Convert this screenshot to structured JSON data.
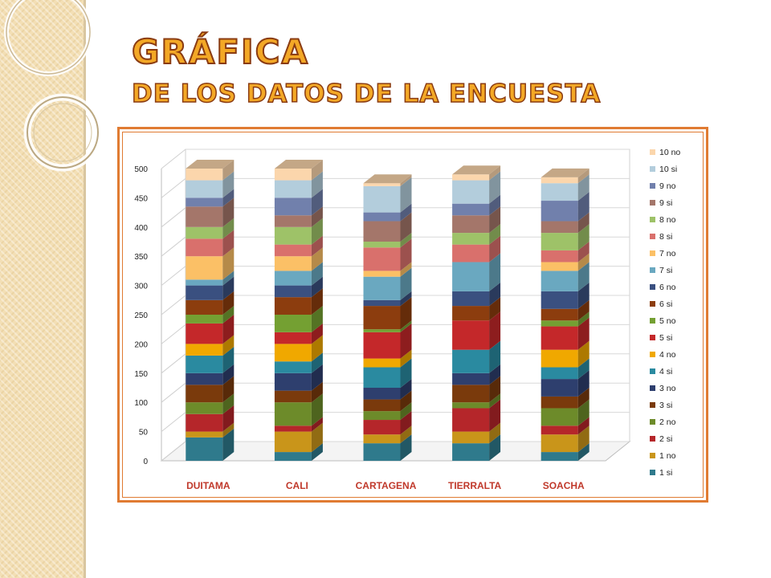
{
  "page": {
    "title": "GRÁFICA",
    "subtitle": "DE LOS DATOS DE LA ENCUESTA"
  },
  "chart_data": {
    "type": "bar",
    "stacked": true,
    "three_d": true,
    "categories": [
      "DUITAMA",
      "CALI",
      "CARTAGENA",
      "TIERRALTA",
      "SOACHA"
    ],
    "y_ticks": [
      0,
      50,
      100,
      150,
      200,
      250,
      300,
      350,
      400,
      450,
      500
    ],
    "ylim": [
      0,
      500
    ],
    "legend_position": "right",
    "series": [
      {
        "name": "1 si",
        "color": "#2f7a8c",
        "values": [
          40,
          15,
          30,
          30,
          15
        ]
      },
      {
        "name": "1 no",
        "color": "#c9951a",
        "values": [
          10,
          35,
          15,
          20,
          30
        ]
      },
      {
        "name": "2 si",
        "color": "#b5262a",
        "values": [
          30,
          10,
          25,
          40,
          15
        ]
      },
      {
        "name": "2 no",
        "color": "#6d8b2a",
        "values": [
          20,
          40,
          15,
          10,
          30
        ]
      },
      {
        "name": "3 si",
        "color": "#7a3a0c",
        "values": [
          30,
          20,
          20,
          30,
          20
        ]
      },
      {
        "name": "3 no",
        "color": "#2e3f6e",
        "values": [
          20,
          30,
          20,
          20,
          30
        ]
      },
      {
        "name": "4 si",
        "color": "#2a8aa0",
        "values": [
          30,
          20,
          35,
          40,
          20
        ]
      },
      {
        "name": "4 no",
        "color": "#f0a800",
        "values": [
          20,
          30,
          15,
          0,
          30
        ]
      },
      {
        "name": "5 si",
        "color": "#c4282a",
        "values": [
          35,
          20,
          45,
          50,
          40
        ]
      },
      {
        "name": "5 no",
        "color": "#74a032",
        "values": [
          15,
          30,
          5,
          0,
          10
        ]
      },
      {
        "name": "6 si",
        "color": "#8c3d0e",
        "values": [
          25,
          30,
          40,
          25,
          20
        ]
      },
      {
        "name": "6 no",
        "color": "#3a5080",
        "values": [
          25,
          20,
          10,
          25,
          30
        ]
      },
      {
        "name": "7 si",
        "color": "#6aa8c0",
        "values": [
          10,
          25,
          40,
          50,
          35
        ]
      },
      {
        "name": "7 no",
        "color": "#fbc066",
        "values": [
          40,
          25,
          10,
          0,
          15
        ]
      },
      {
        "name": "8 si",
        "color": "#d9706c",
        "values": [
          30,
          20,
          40,
          30,
          20
        ]
      },
      {
        "name": "8 no",
        "color": "#9ec268",
        "values": [
          20,
          30,
          10,
          20,
          30
        ]
      },
      {
        "name": "9 si",
        "color": "#a4766a",
        "values": [
          35,
          20,
          35,
          30,
          20
        ]
      },
      {
        "name": "9 no",
        "color": "#7180ac",
        "values": [
          15,
          30,
          15,
          20,
          35
        ]
      },
      {
        "name": "10 si",
        "color": "#b3cddc",
        "values": [
          30,
          30,
          45,
          40,
          30
        ]
      },
      {
        "name": "10 no",
        "color": "#fbd6ac",
        "values": [
          20,
          20,
          5,
          10,
          10
        ]
      }
    ]
  }
}
